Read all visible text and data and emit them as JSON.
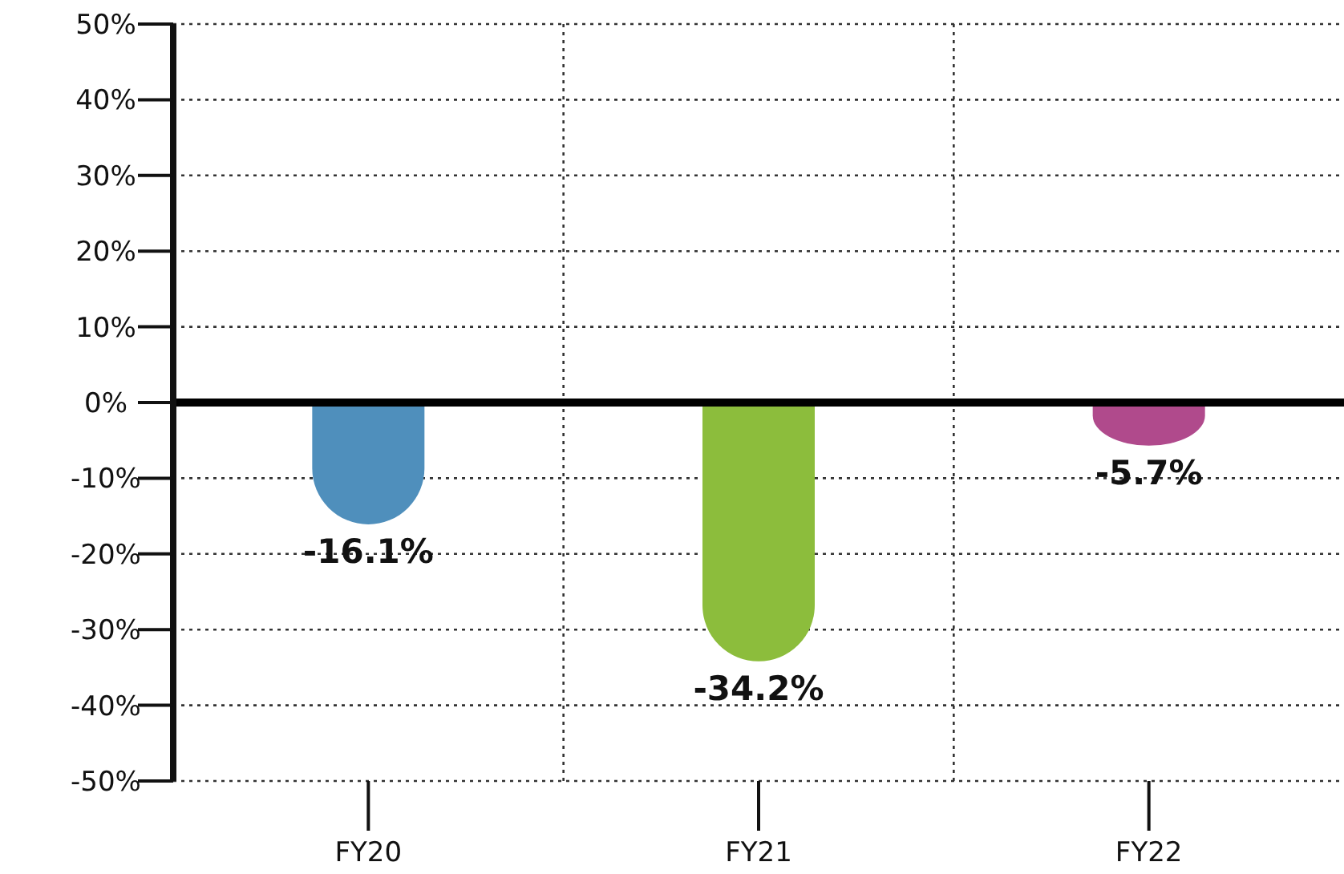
{
  "chart_data": {
    "type": "bar",
    "categories": [
      "FY20",
      "FY21",
      "FY22"
    ],
    "values": [
      -16.1,
      -34.2,
      -5.7
    ],
    "colors": [
      "#4f8fbc",
      "#8cbd3c",
      "#b04a8c"
    ],
    "ylim": [
      -50,
      50
    ],
    "yticks": [
      {
        "value": -50,
        "label": "-50%"
      },
      {
        "value": -40,
        "label": "-40%"
      },
      {
        "value": -30,
        "label": "-30%"
      },
      {
        "value": -20,
        "label": "-20%"
      },
      {
        "value": -10,
        "label": "-10%"
      },
      {
        "value": 0,
        "label": "0%"
      },
      {
        "value": 10,
        "label": "10%"
      },
      {
        "value": 20,
        "label": "20%"
      },
      {
        "value": 30,
        "label": "30%"
      },
      {
        "value": 40,
        "label": "40%"
      },
      {
        "value": 50,
        "label": "50%"
      }
    ],
    "value_labels": [
      "-16.1%",
      "-34.2%",
      "-5.7%"
    ],
    "grid": true
  }
}
